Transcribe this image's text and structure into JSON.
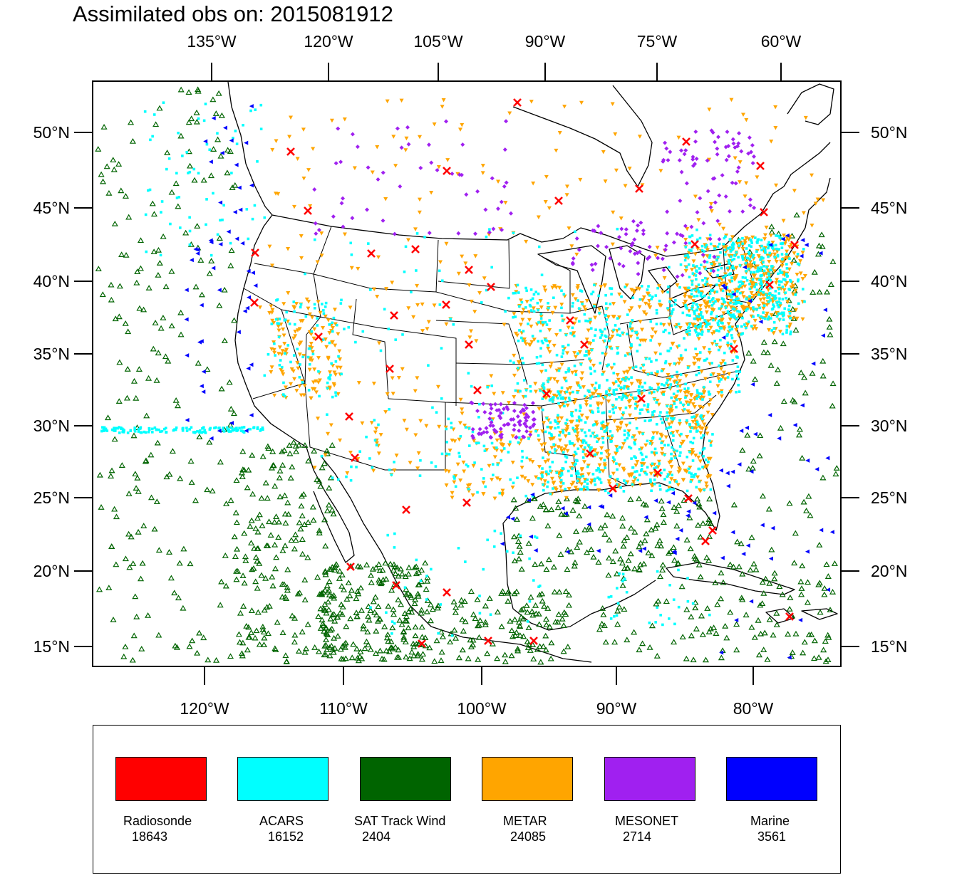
{
  "title": "Assimilated obs on: 2015081912",
  "map": {
    "region": "North America (CONUS, Mexico, Caribbean)",
    "top_axis_labels": [
      "135°W",
      "120°W",
      "105°W",
      "90°W",
      "75°W",
      "60°W"
    ],
    "bottom_axis_labels": [
      "120°W",
      "110°W",
      "100°W",
      "90°W",
      "80°W"
    ],
    "lat_labels": [
      "50°N",
      "45°N",
      "40°N",
      "35°N",
      "30°N",
      "25°N",
      "20°N",
      "15°N"
    ],
    "colors": {
      "radiosonde": "#ff0000",
      "acars": "#00ffff",
      "sat_track_wind": "#006400",
      "metar": "#ffa500",
      "mesonet": "#a020f0",
      "marine": "#0000ff"
    },
    "markers": {
      "radiosonde": "x-icon",
      "acars": "square-dot-icon",
      "sat_track_wind": "triangle-outline-icon",
      "metar": "triangle-down-icon",
      "mesonet": "diamond-icon",
      "marine": "triangle-left-icon"
    }
  },
  "legend": [
    {
      "name": "Radiosonde",
      "count": "18643",
      "color": "#ff0000"
    },
    {
      "name": "ACARS",
      "count": "16152",
      "color": "#00ffff"
    },
    {
      "name": "SAT Track Wind",
      "count": "2404",
      "color": "#006400"
    },
    {
      "name": "METAR",
      "count": "24085",
      "color": "#ffa500"
    },
    {
      "name": "MESONET",
      "count": "2714",
      "color": "#a020f0"
    },
    {
      "name": "Marine",
      "count": "3561",
      "color": "#0000ff"
    }
  ]
}
